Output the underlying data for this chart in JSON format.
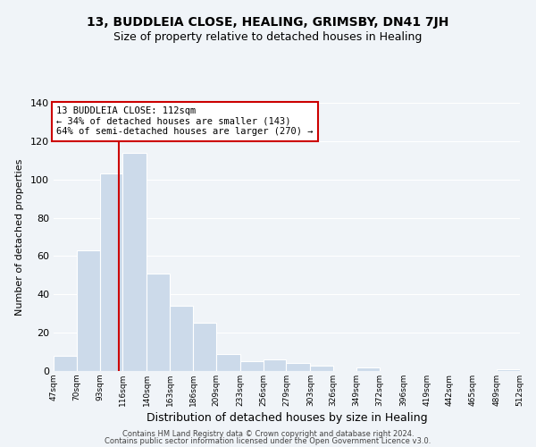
{
  "title": "13, BUDDLEIA CLOSE, HEALING, GRIMSBY, DN41 7JH",
  "subtitle": "Size of property relative to detached houses in Healing",
  "xlabel": "Distribution of detached houses by size in Healing",
  "ylabel": "Number of detached properties",
  "bar_color": "#ccdaea",
  "bins": [
    47,
    70,
    93,
    116,
    140,
    163,
    186,
    209,
    233,
    256,
    279,
    303,
    326,
    349,
    372,
    396,
    419,
    442,
    465,
    489,
    512
  ],
  "counts": [
    8,
    63,
    103,
    114,
    51,
    34,
    25,
    9,
    5,
    6,
    4,
    3,
    0,
    2,
    0,
    0,
    0,
    0,
    0,
    1
  ],
  "property_size": 112,
  "vline_color": "#cc0000",
  "annotation_line1": "13 BUDDLEIA CLOSE: 112sqm",
  "annotation_line2": "← 34% of detached houses are smaller (143)",
  "annotation_line3": "64% of semi-detached houses are larger (270) →",
  "annotation_box_color": "#ffffff",
  "annotation_box_edge": "#cc0000",
  "ylim": [
    0,
    140
  ],
  "yticks": [
    0,
    20,
    40,
    60,
    80,
    100,
    120,
    140
  ],
  "footer1": "Contains HM Land Registry data © Crown copyright and database right 2024.",
  "footer2": "Contains public sector information licensed under the Open Government Licence v3.0.",
  "tick_labels": [
    "47sqm",
    "70sqm",
    "93sqm",
    "116sqm",
    "140sqm",
    "163sqm",
    "186sqm",
    "209sqm",
    "233sqm",
    "256sqm",
    "279sqm",
    "303sqm",
    "326sqm",
    "349sqm",
    "372sqm",
    "396sqm",
    "419sqm",
    "442sqm",
    "465sqm",
    "489sqm",
    "512sqm"
  ],
  "background_color": "#f0f4f8",
  "grid_color": "#ffffff",
  "title_fontsize": 10,
  "subtitle_fontsize": 9
}
